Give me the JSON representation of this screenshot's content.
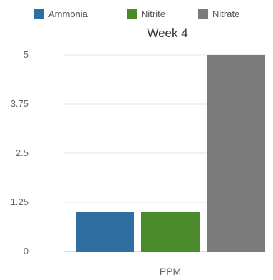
{
  "chart_data": {
    "type": "bar",
    "title": "Week 4",
    "categories": [
      "PPM"
    ],
    "series": [
      {
        "name": "Ammonia",
        "values": [
          1
        ],
        "color": "#2f6f9f"
      },
      {
        "name": "Nitrite",
        "values": [
          1
        ],
        "color": "#4a8a2a"
      },
      {
        "name": "Nitrate",
        "values": [
          5
        ],
        "color": "#7b7b7b"
      }
    ],
    "ylim": [
      0,
      5
    ],
    "yticks": [
      "0",
      "1.25",
      "2.5",
      "3.75",
      "5"
    ],
    "legend_position": "top",
    "grid": true
  }
}
